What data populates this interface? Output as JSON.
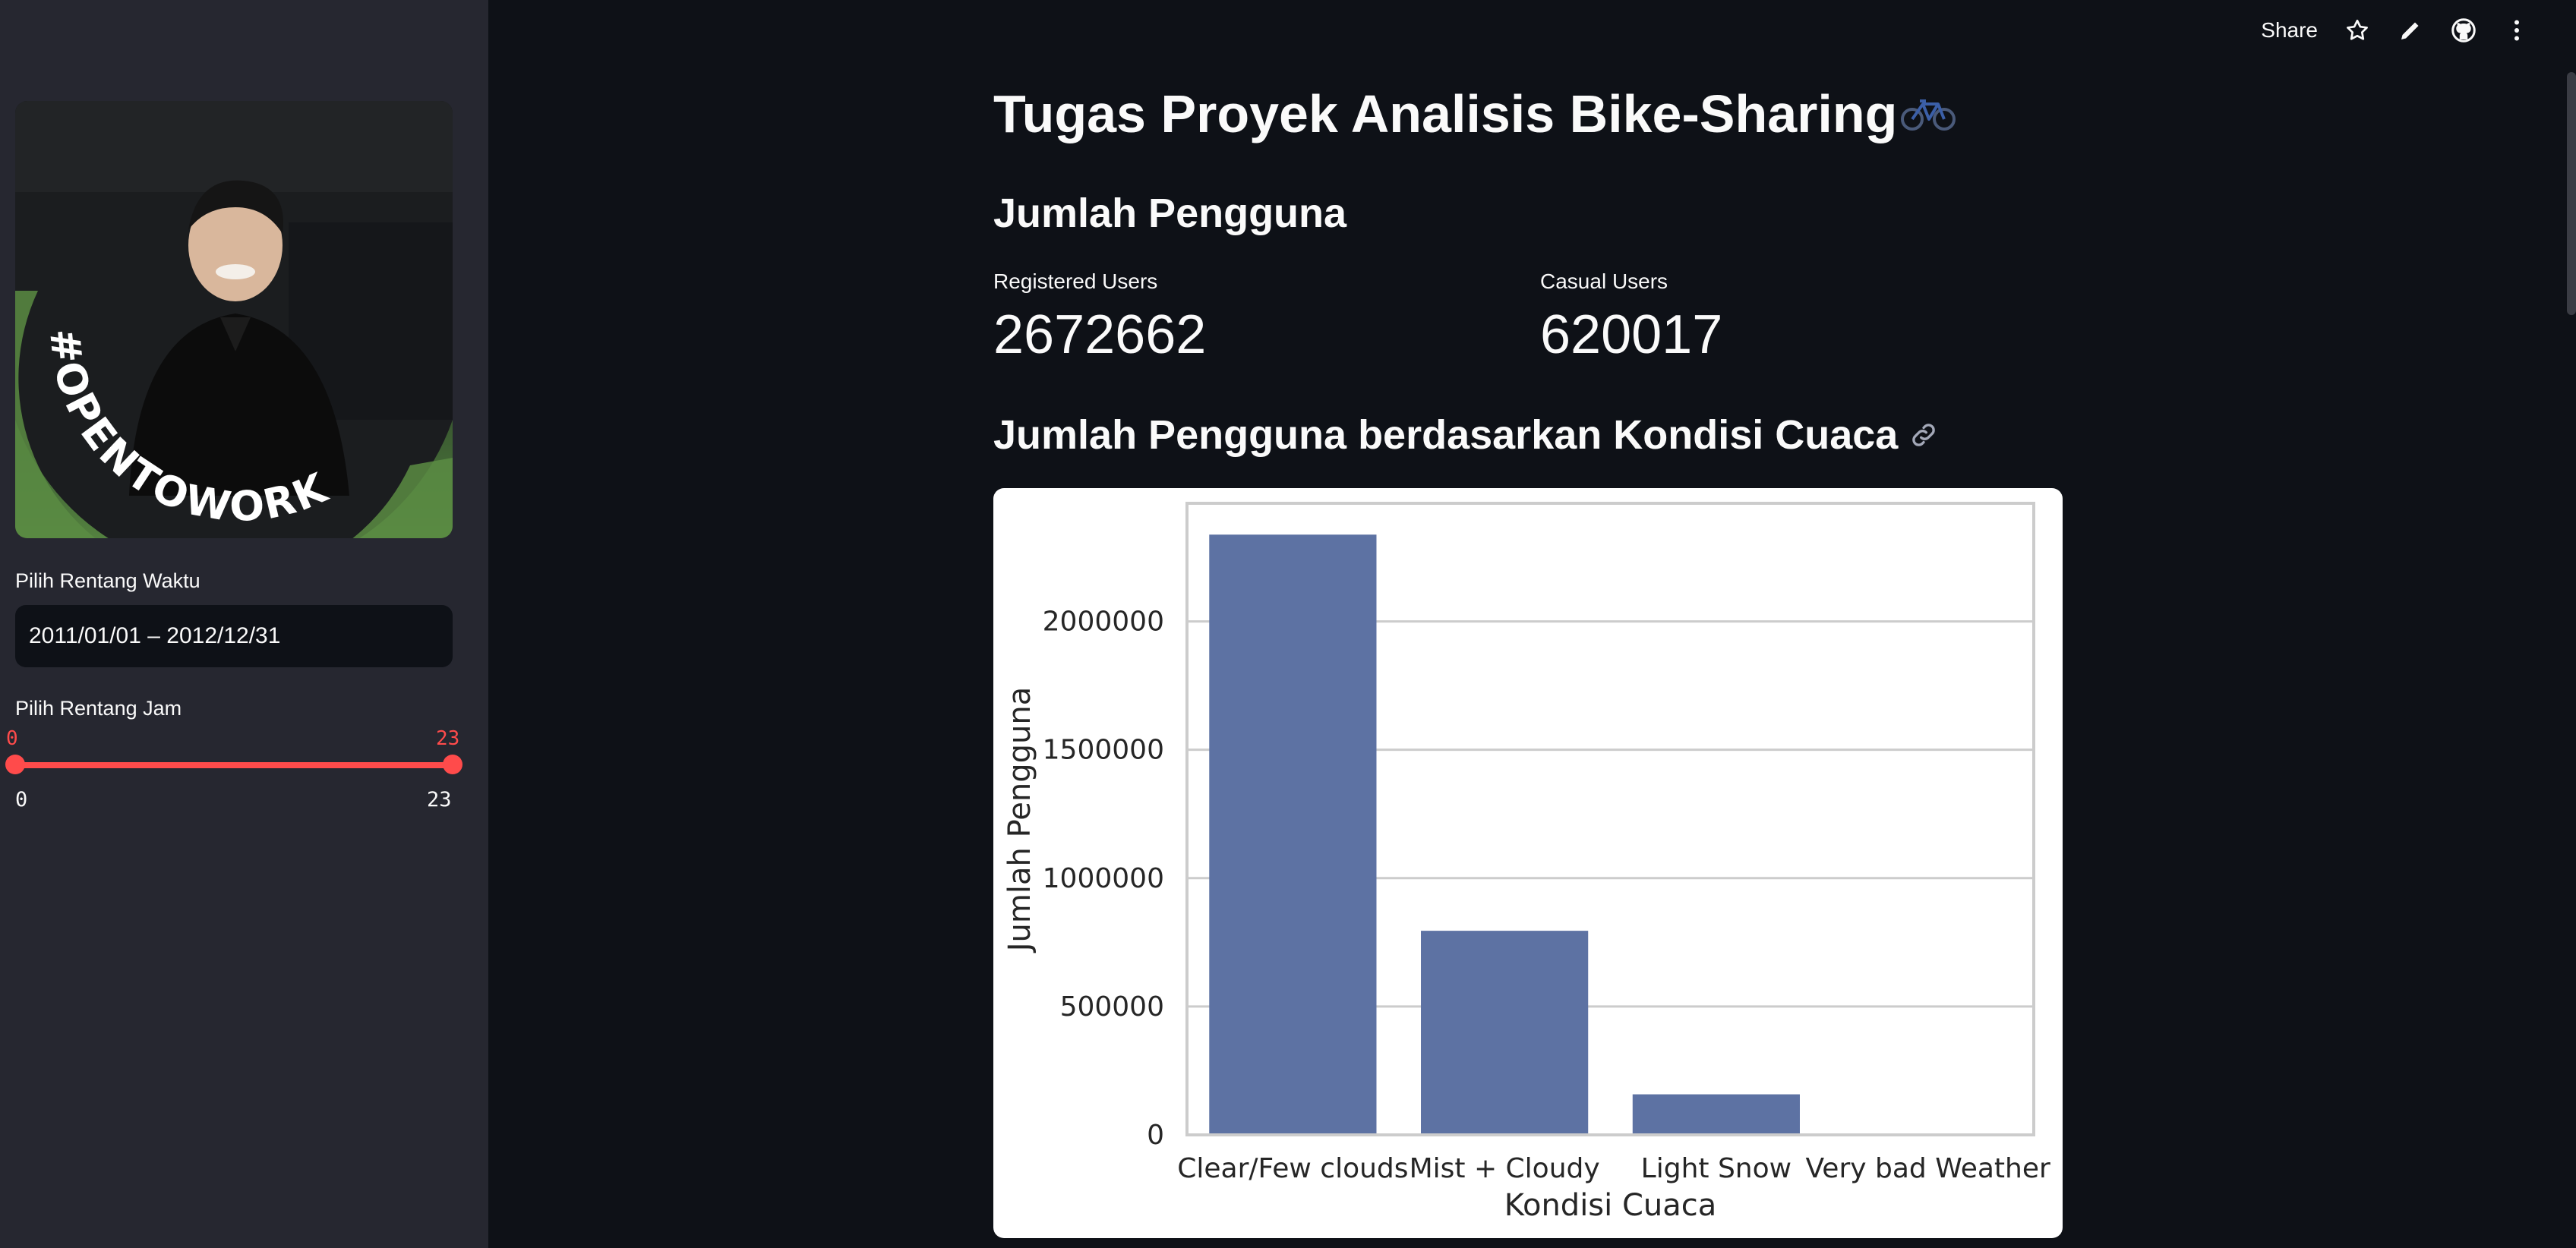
{
  "toolbar": {
    "share_label": "Share",
    "icons": [
      "star-icon",
      "edit-pencil-icon",
      "github-icon",
      "more-vertical-icon"
    ]
  },
  "sidebar": {
    "avatar_badge": "#OPENTOWORK",
    "date_range": {
      "label": "Pilih Rentang Waktu",
      "value": "2011/01/01 – 2012/12/31"
    },
    "hour_range": {
      "label": "Pilih Rentang Jam",
      "min_value": "0",
      "max_value": "23",
      "min_tick": "0",
      "max_tick": "23",
      "min": 0,
      "max": 23,
      "selected": [
        0,
        23
      ]
    }
  },
  "main": {
    "title": "Tugas Proyek Analisis Bike-Sharing",
    "section_users": "Jumlah Pengguna",
    "metrics": [
      {
        "label": "Registered Users",
        "value": "2672662"
      },
      {
        "label": "Casual Users",
        "value": "620017"
      }
    ],
    "section_weather": "Jumlah Pengguna berdasarkan Kondisi Cuaca"
  },
  "chart_data": {
    "type": "bar",
    "title": "",
    "categories": [
      "Clear/Few clouds",
      "Mist + Cloudy",
      "Light Snow",
      "Very bad Weather"
    ],
    "values": [
      2338000,
      795000,
      158000,
      0
    ],
    "xlabel": "Kondisi Cuaca",
    "ylabel": "Jumlah Pengguna",
    "ylim": [
      0,
      2460000
    ],
    "yticks": [
      0,
      500000,
      1000000,
      1500000,
      2000000
    ],
    "grid": "horizontal",
    "bar_color": "#5d72a3"
  },
  "colors": {
    "background": "#0e1117",
    "sidebar": "#262730",
    "accent": "#ff4b4b",
    "text": "#fafafa"
  }
}
